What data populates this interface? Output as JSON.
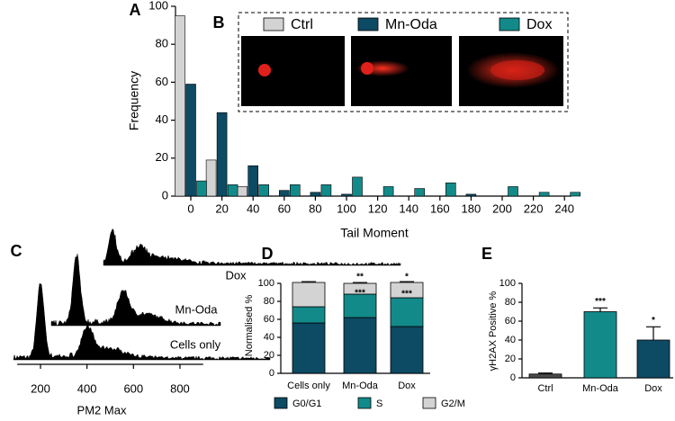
{
  "chart_data": [
    {
      "type": "grouped-bar",
      "panel": "A",
      "inset_panel": "B",
      "xlabel": "Tail Moment",
      "ylabel": "Frequency",
      "categories": [
        "0",
        "20",
        "40",
        "60",
        "80",
        "100",
        "120",
        "140",
        "160",
        "180",
        "200",
        "220",
        "240"
      ],
      "ylim": [
        0,
        100
      ],
      "yticks": [
        0,
        20,
        40,
        60,
        80,
        100
      ],
      "series": [
        {
          "name": "Ctrl",
          "color": "#d3d3d3",
          "values": [
            95,
            19,
            5,
            0,
            0,
            0,
            0,
            0,
            0,
            0,
            0,
            0,
            0
          ]
        },
        {
          "name": "Mn-Oda",
          "color": "#0d4a63",
          "values": [
            59,
            44,
            16,
            3,
            2,
            1,
            0,
            0,
            0,
            1,
            0,
            0,
            0
          ]
        },
        {
          "name": "Dox",
          "color": "#138a8a",
          "values": [
            8,
            6,
            6,
            6,
            6,
            10,
            5,
            4,
            7,
            0,
            5,
            2,
            2
          ]
        }
      ]
    },
    {
      "type": "flow-trace",
      "panel": "C",
      "xlabel": "PM2 Max",
      "xlim": [
        100,
        900
      ],
      "xticks": [
        200,
        400,
        600,
        800
      ],
      "trace_labels": [
        "Dox",
        "Mn-Oda",
        "Cells only"
      ]
    },
    {
      "type": "stacked-bar",
      "panel": "D",
      "ylabel": "Normalised %",
      "categories": [
        "Cells only",
        "Mn-Oda",
        "Dox"
      ],
      "ylim": [
        0,
        100
      ],
      "yticks": [
        0,
        20,
        40,
        60,
        80,
        100
      ],
      "series": [
        {
          "name": "G0/G1",
          "color": "#0d4a63",
          "values": [
            56,
            62,
            52
          ],
          "errors": [
            3,
            4,
            2
          ]
        },
        {
          "name": "S",
          "color": "#138a8a",
          "values": [
            18,
            26,
            32
          ],
          "errors": [
            1,
            1,
            1
          ]
        },
        {
          "name": "G2/M",
          "color": "#d3d3d3",
          "values": [
            27,
            12,
            17
          ],
          "errors": [
            1,
            1,
            1
          ]
        }
      ],
      "annotations": [
        {
          "category": 1,
          "text": "**"
        },
        {
          "category": 1,
          "text": "***"
        },
        {
          "category": 2,
          "text": "*"
        },
        {
          "category": 2,
          "text": "***"
        }
      ]
    },
    {
      "type": "bar",
      "panel": "E",
      "ylabel": "γH2AX Positive %",
      "categories": [
        "Ctrl",
        "Mn-Oda",
        "Dox"
      ],
      "values": [
        4,
        70,
        40
      ],
      "errors": [
        1,
        4,
        14
      ],
      "colors": [
        "#4a4a4a",
        "#138a8a",
        "#0d4a63"
      ],
      "ylim": [
        0,
        100
      ],
      "yticks": [
        0,
        20,
        40,
        60,
        80,
        100
      ],
      "annotations": [
        "",
        "***",
        "*"
      ]
    }
  ]
}
